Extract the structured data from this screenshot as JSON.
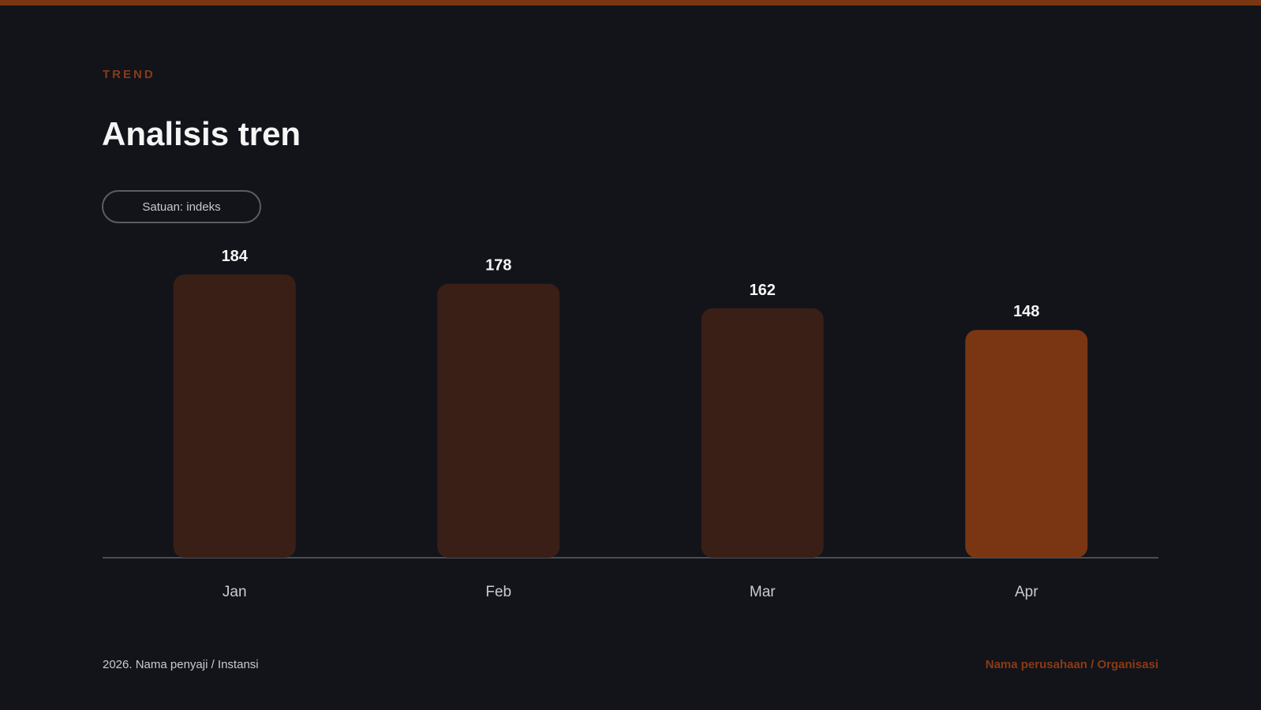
{
  "header": {
    "eyebrow": "TREND",
    "title": "Analisis tren",
    "unit_label": "Satuan: indeks"
  },
  "footer": {
    "left": "2026. Nama penyaji / Instansi",
    "right": "Nama perusahaan / Organisasi"
  },
  "colors": {
    "accent": "#7a3612",
    "bar_muted": "#3a1f17",
    "bar_highlight": "#7a3612",
    "background": "#12141a"
  },
  "chart_data": {
    "type": "bar",
    "categories": [
      "Jan",
      "Feb",
      "Mar",
      "Apr"
    ],
    "values": [
      184,
      178,
      162,
      148
    ],
    "highlight_index": 3,
    "ylim": [
      0,
      184
    ],
    "grid": false,
    "legend": "none"
  }
}
